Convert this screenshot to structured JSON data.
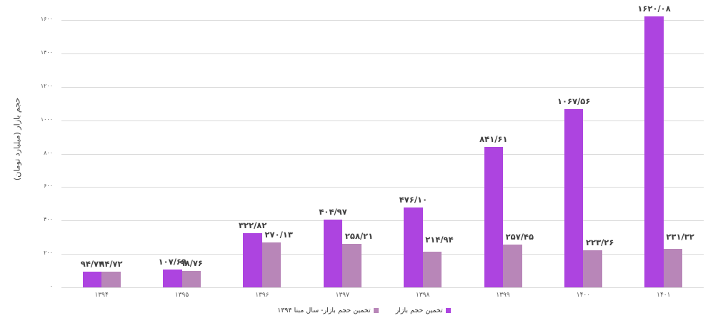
{
  "chart_data": {
    "type": "bar",
    "title": "",
    "xlabel": "",
    "ylabel": "حجم بازار (میلیارد تومان)",
    "ylim": [
      0,
      1600
    ],
    "yticks": [
      "۰",
      "۲۰۰",
      "۴۰۰",
      "۶۰۰",
      "۸۰۰",
      "۱۰۰۰",
      "۱۲۰۰",
      "۱۴۰۰",
      "۱۶۰۰"
    ],
    "ytick_values": [
      0,
      200,
      400,
      600,
      800,
      1000,
      1200,
      1400,
      1600
    ],
    "grid": true,
    "legend_position": "bottom",
    "categories": [
      "۱۳۹۴",
      "۱۳۹۵",
      "۱۳۹۶",
      "۱۳۹۷",
      "۱۳۹۸",
      "۱۳۹۹",
      "۱۴۰۰",
      "۱۴۰۱"
    ],
    "series": [
      {
        "name": "تخمین حجم بازار",
        "color": "#ad44e0",
        "values": [
          94.72,
          107.69,
          322.82,
          404.97,
          476.1,
          841.61,
          1067.56,
          1620.08
        ],
        "labels": [
          "۹۴/۷۲",
          "۱۰۷/۶۹",
          "۳۲۲/۸۲",
          "۴۰۴/۹۷",
          "۴۷۶/۱۰",
          "۸۴۱/۶۱",
          "۱۰۶۷/۵۶",
          "۱۶۲۰/۰۸"
        ]
      },
      {
        "name": "تخمین حجم بازار- سال مبنا ۱۳۹۴",
        "color": "#b886b8",
        "values": [
          94.72,
          98.76,
          270.13,
          258.21,
          214.94,
          257.45,
          223.26,
          231.32
        ],
        "labels": [
          "۹۴/۷۲",
          "۹۸/۷۶",
          "۲۷۰/۱۳",
          "۲۵۸/۲۱",
          "۲۱۴/۹۴",
          "۲۵۷/۴۵",
          "۲۲۳/۲۶",
          "۲۳۱/۳۲"
        ]
      }
    ]
  }
}
